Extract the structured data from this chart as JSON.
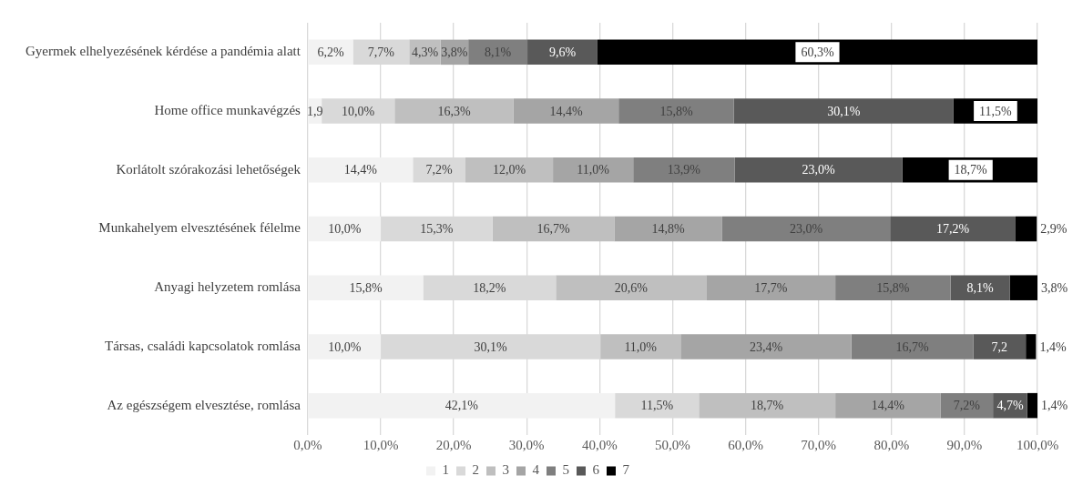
{
  "chart_data": {
    "type": "bar",
    "orientation": "horizontal",
    "stacked": true,
    "categories": [
      "Gyermek elhelyezésének kérdése a pandémia alatt",
      "Home office munkavégzés",
      "Korlátolt szórakozási lehetőségek",
      "Munkahelyem elvesztésének félelme",
      "Anyagi helyzetem romlása",
      "Társas, családi kapcsolatok romlása",
      "Az egészségem elvesztése, romlása"
    ],
    "series": [
      {
        "name": "1",
        "color": "#f2f2f2",
        "values": [
          6.2,
          1.9,
          14.4,
          10.0,
          15.8,
          10.0,
          42.1
        ],
        "value_labels": [
          "6,2%",
          "1,9",
          "14,4%",
          "10,0%",
          "15,8%",
          "10,0%",
          "42,1%"
        ]
      },
      {
        "name": "2",
        "color": "#d9d9d9",
        "values": [
          7.7,
          10.0,
          7.2,
          15.3,
          18.2,
          30.1,
          11.5
        ],
        "value_labels": [
          "7,7%",
          "10,0%",
          "7,2%",
          "15,3%",
          "18,2%",
          "30,1%",
          "11,5%"
        ]
      },
      {
        "name": "3",
        "color": "#bfbfbf",
        "values": [
          4.3,
          16.3,
          12.0,
          16.7,
          20.6,
          11.0,
          18.7
        ],
        "value_labels": [
          "4,3%",
          "16,3%",
          "12,0%",
          "16,7%",
          "20,6%",
          "11,0%",
          "18,7%"
        ]
      },
      {
        "name": "4",
        "color": "#a5a5a5",
        "values": [
          3.8,
          14.4,
          11.0,
          14.8,
          17.7,
          23.4,
          14.4
        ],
        "value_labels": [
          "3,8%",
          "14,4%",
          "11,0%",
          "14,8%",
          "17,7%",
          "23,4%",
          "14,4%"
        ]
      },
      {
        "name": "5",
        "color": "#7f7f7f",
        "values": [
          8.1,
          15.8,
          13.9,
          23.0,
          15.8,
          16.7,
          7.2
        ],
        "value_labels": [
          "8,1%",
          "15,8%",
          "13,9%",
          "23,0%",
          "15,8%",
          "16,7%",
          "7,2%"
        ]
      },
      {
        "name": "6",
        "color": "#595959",
        "values": [
          9.6,
          30.1,
          23.0,
          17.2,
          8.1,
          7.2,
          4.7
        ],
        "value_labels": [
          "9,6%",
          "30,1%",
          "23,0%",
          "17,2%",
          "8,1%",
          "7,2",
          "4,7%"
        ]
      },
      {
        "name": "7",
        "color": "#000000",
        "values": [
          60.3,
          11.5,
          18.7,
          2.9,
          3.8,
          1.4,
          1.4
        ],
        "value_labels": [
          "60,3%",
          "11,5%",
          "18,7%",
          "2,9%",
          "3,8%",
          "1,4%",
          "1,4%"
        ]
      }
    ],
    "xlim": [
      0,
      100
    ],
    "xticks": [
      {
        "value": 0,
        "label": "0,0%"
      },
      {
        "value": 10,
        "label": "10,0%"
      },
      {
        "value": 20,
        "label": "20,0%"
      },
      {
        "value": 30,
        "label": "30,0%"
      },
      {
        "value": 40,
        "label": "40,0%"
      },
      {
        "value": 50,
        "label": "50,0%"
      },
      {
        "value": 60,
        "label": "60,0%"
      },
      {
        "value": 70,
        "label": "70,0%"
      },
      {
        "value": 80,
        "label": "80,0%"
      },
      {
        "value": 90,
        "label": "90,0%"
      },
      {
        "value": 100,
        "label": "100,0%"
      }
    ],
    "grid": "x",
    "legend": "bottom"
  }
}
